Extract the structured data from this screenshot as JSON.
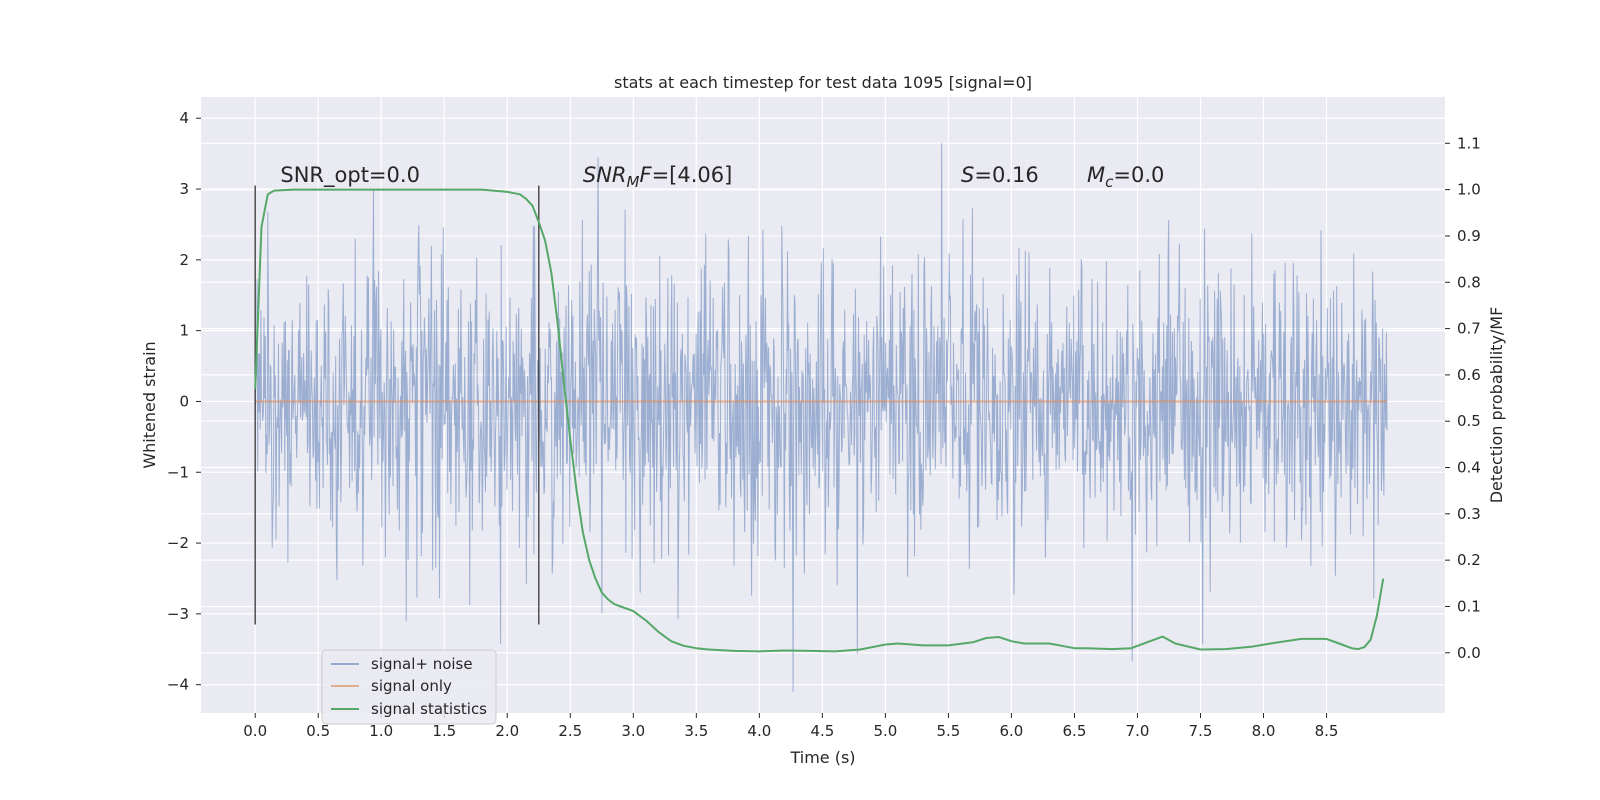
{
  "chart_data": {
    "type": "line",
    "title": "stats at each timestep for test data 1095 [signal=0]",
    "xlabel": "Time (s)",
    "ylabel": "Whitened strain",
    "y2label": "Detection probability/MF",
    "xlim": [
      -0.43,
      9.44
    ],
    "ylim": [
      -4.4,
      4.3
    ],
    "y2lim": [
      -0.13,
      1.2
    ],
    "xticks": [
      0.0,
      0.5,
      1.0,
      1.5,
      2.0,
      2.5,
      3.0,
      3.5,
      4.0,
      4.5,
      5.0,
      5.5,
      6.0,
      6.5,
      7.0,
      7.5,
      8.0,
      8.5
    ],
    "xtick_labels": [
      "0.0",
      "0.5",
      "1.0",
      "1.5",
      "2.0",
      "2.5",
      "3.0",
      "3.5",
      "4.0",
      "4.5",
      "5.0",
      "5.5",
      "6.0",
      "6.5",
      "7.0",
      "7.5",
      "8.0",
      "8.5"
    ],
    "yticks": [
      4,
      3,
      2,
      1,
      0,
      -1,
      -2,
      -3,
      -4
    ],
    "ytick_labels": [
      "4",
      "3",
      "2",
      "1",
      "0",
      "−1",
      "−2",
      "−3",
      "−4"
    ],
    "y2ticks": [
      1.1,
      1.0,
      0.9,
      0.8,
      0.7,
      0.6,
      0.5,
      0.4,
      0.3,
      0.2,
      0.1,
      0.0
    ],
    "y2tick_labels": [
      "1.1",
      "1.0",
      "0.9",
      "0.8",
      "0.7",
      "0.6",
      "0.5",
      "0.4",
      "0.3",
      "0.2",
      "0.1",
      "0.0"
    ],
    "vlines": [
      {
        "x": 0.0,
        "ymin": -3.15,
        "ymax": 3.05
      },
      {
        "x": 2.25,
        "ymin": -3.15,
        "ymax": 3.05
      }
    ],
    "annotations": [
      {
        "x": 0.2,
        "y": 3.1,
        "parts": [
          {
            "t": "SNR_opt=0.0",
            "i": false
          }
        ]
      },
      {
        "x": 2.6,
        "y": 3.1,
        "parts": [
          {
            "t": "SNR",
            "i": true
          },
          {
            "t": "M",
            "i": true,
            "sub": true
          },
          {
            "t": "F",
            "i": true
          },
          {
            "t": "=[4.06]",
            "i": false
          }
        ]
      },
      {
        "x": 5.6,
        "y": 3.1,
        "parts": [
          {
            "t": "S",
            "i": true
          },
          {
            "t": "=0.16",
            "i": false
          }
        ]
      },
      {
        "x": 6.6,
        "y": 3.1,
        "parts": [
          {
            "t": "M",
            "i": true
          },
          {
            "t": "c",
            "i": true,
            "sub": true
          },
          {
            "t": "=0.0",
            "i": false
          }
        ]
      }
    ],
    "series": [
      {
        "name": "signal+ noise",
        "color": "#4c72b0",
        "axis": "left",
        "style": "noise",
        "x_range": [
          0.0,
          8.98
        ],
        "samples": 1800,
        "noise_std": 1.05,
        "noise_seed": 1095,
        "mean": 0.0
      },
      {
        "name": "signal only",
        "color": "#dd8452",
        "axis": "left",
        "x": [
          0.0,
          8.98
        ],
        "values": [
          0.0,
          0.0
        ]
      },
      {
        "name": "signal statistics",
        "color": "#55a868",
        "axis": "right",
        "x": [
          0.0,
          0.05,
          0.1,
          0.15,
          0.3,
          0.6,
          1.0,
          1.5,
          1.8,
          2.0,
          2.1,
          2.15,
          2.2,
          2.25,
          2.3,
          2.35,
          2.4,
          2.45,
          2.5,
          2.55,
          2.6,
          2.65,
          2.7,
          2.75,
          2.8,
          2.85,
          2.9,
          3.0,
          3.1,
          3.2,
          3.3,
          3.4,
          3.5,
          3.6,
          3.8,
          4.0,
          4.2,
          4.4,
          4.6,
          4.8,
          5.0,
          5.1,
          5.3,
          5.5,
          5.7,
          5.8,
          5.9,
          6.0,
          6.1,
          6.2,
          6.3,
          6.4,
          6.5,
          6.6,
          6.8,
          6.95,
          7.1,
          7.2,
          7.3,
          7.5,
          7.7,
          7.9,
          8.1,
          8.3,
          8.5,
          8.6,
          8.7,
          8.75,
          8.8,
          8.85,
          8.9,
          8.95
        ],
        "values": [
          0.57,
          0.92,
          0.99,
          0.998,
          1.0,
          1.0,
          1.0,
          1.0,
          1.0,
          0.995,
          0.99,
          0.98,
          0.965,
          0.93,
          0.89,
          0.82,
          0.71,
          0.58,
          0.46,
          0.35,
          0.26,
          0.2,
          0.16,
          0.13,
          0.115,
          0.105,
          0.1,
          0.09,
          0.07,
          0.045,
          0.025,
          0.015,
          0.01,
          0.007,
          0.004,
          0.003,
          0.005,
          0.004,
          0.003,
          0.007,
          0.018,
          0.02,
          0.016,
          0.016,
          0.023,
          0.032,
          0.034,
          0.025,
          0.02,
          0.02,
          0.02,
          0.015,
          0.01,
          0.01,
          0.008,
          0.01,
          0.025,
          0.035,
          0.02,
          0.007,
          0.008,
          0.013,
          0.022,
          0.03,
          0.03,
          0.02,
          0.01,
          0.008,
          0.012,
          0.028,
          0.08,
          0.16
        ]
      }
    ],
    "legend": {
      "position": "lower-left",
      "entries": [
        "signal+ noise",
        "signal only",
        "signal statistics"
      ]
    }
  }
}
